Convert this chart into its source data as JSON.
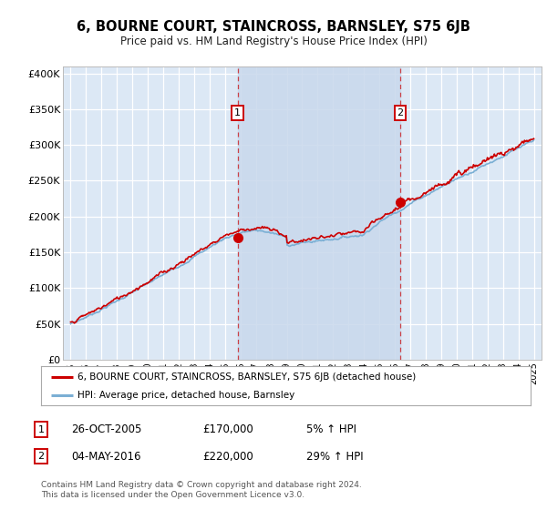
{
  "title": "6, BOURNE COURT, STAINCROSS, BARNSLEY, S75 6JB",
  "subtitle": "Price paid vs. HM Land Registry's House Price Index (HPI)",
  "ylabel_ticks": [
    "£0",
    "£50K",
    "£100K",
    "£150K",
    "£200K",
    "£250K",
    "£300K",
    "£350K",
    "£400K"
  ],
  "ylabel_values": [
    0,
    50000,
    100000,
    150000,
    200000,
    250000,
    300000,
    350000,
    400000
  ],
  "ylim": [
    0,
    410000
  ],
  "xlim_start": 1994.5,
  "xlim_end": 2025.5,
  "marker1_x": 2005.82,
  "marker1_y": 170000,
  "marker2_x": 2016.34,
  "marker2_y": 220000,
  "hpi_color": "#7bafd4",
  "price_color": "#cc0000",
  "shade_color": "#c8d8ec",
  "marker_box_color": "#cc0000",
  "background_color": "#dce8f5",
  "grid_color": "#ffffff",
  "legend_label_price": "6, BOURNE COURT, STAINCROSS, BARNSLEY, S75 6JB (detached house)",
  "legend_label_hpi": "HPI: Average price, detached house, Barnsley",
  "annotation1": [
    "1",
    "26-OCT-2005",
    "£170,000",
    "5% ↑ HPI"
  ],
  "annotation2": [
    "2",
    "04-MAY-2016",
    "£220,000",
    "29% ↑ HPI"
  ],
  "footnote": "Contains HM Land Registry data © Crown copyright and database right 2024.\nThis data is licensed under the Open Government Licence v3.0.",
  "xtick_years": [
    1995,
    1996,
    1997,
    1998,
    1999,
    2000,
    2001,
    2002,
    2003,
    2004,
    2005,
    2006,
    2007,
    2008,
    2009,
    2010,
    2011,
    2012,
    2013,
    2014,
    2015,
    2016,
    2017,
    2018,
    2019,
    2020,
    2021,
    2022,
    2023,
    2024,
    2025
  ]
}
